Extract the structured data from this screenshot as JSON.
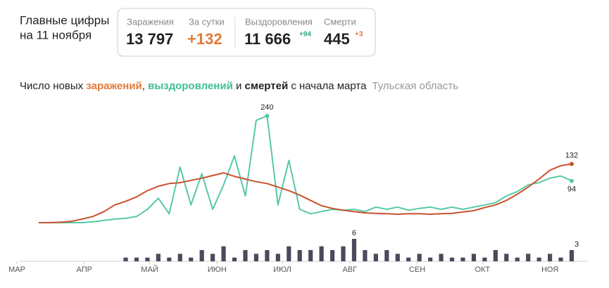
{
  "header": {
    "title_line1": "Главные цифры",
    "title_line2": "на 11 ноября"
  },
  "stats": [
    {
      "label": "Заражения",
      "value": "13 797"
    },
    {
      "label": "За сутки",
      "value": "+132"
    },
    {
      "label": "Выздоровления",
      "value": "11 666",
      "delta": "+94"
    },
    {
      "label": "Смерти",
      "value": "445",
      "delta": "+3"
    }
  ],
  "chart_data": {
    "type": "line",
    "title_parts": [
      "Число новых ",
      "заражений",
      ", ",
      "выздоровлений",
      " и ",
      "смертей",
      " с начала марта"
    ],
    "region": "Тульская область",
    "x": [
      10,
      15,
      20,
      25,
      30,
      35,
      40,
      45,
      50,
      55,
      60,
      65,
      70,
      75,
      80,
      85,
      90,
      95,
      100,
      105,
      110,
      115,
      120,
      125,
      130,
      135,
      140,
      145,
      150,
      155,
      160,
      165,
      170,
      175,
      180,
      185,
      190,
      195,
      200,
      205,
      210,
      215,
      220,
      225,
      230,
      235,
      240,
      245,
      250,
      255
    ],
    "xlim": [
      0,
      255
    ],
    "xticks": [
      {
        "value": 0,
        "label": "МАР"
      },
      {
        "value": 31,
        "label": "АПР"
      },
      {
        "value": 61,
        "label": "МАЙ"
      },
      {
        "value": 92,
        "label": "ИЮН"
      },
      {
        "value": 122,
        "label": "ИЮЛ"
      },
      {
        "value": 153,
        "label": "АВГ"
      },
      {
        "value": 184,
        "label": "СЕН"
      },
      {
        "value": 214,
        "label": "ОКТ"
      },
      {
        "value": 245,
        "label": "НОЯ"
      }
    ],
    "ylim": [
      0,
      240
    ],
    "series": [
      {
        "name": "заражений",
        "color": "#c8532e",
        "values": [
          0,
          0,
          1,
          3,
          8,
          14,
          25,
          40,
          48,
          58,
          72,
          82,
          88,
          90,
          95,
          100,
          106,
          112,
          104,
          98,
          92,
          88,
          80,
          72,
          62,
          50,
          38,
          32,
          28,
          25,
          22,
          21,
          20,
          19,
          20,
          20,
          19,
          20,
          21,
          24,
          27,
          34,
          40,
          50,
          64,
          80,
          98,
          118,
          128,
          132
        ]
      },
      {
        "name": "выздоровлений",
        "color": "#56c9a6",
        "values": [
          0,
          0,
          0,
          0,
          0,
          2,
          5,
          8,
          10,
          14,
          30,
          55,
          20,
          125,
          40,
          110,
          30,
          85,
          150,
          60,
          230,
          240,
          40,
          140,
          30,
          20,
          25,
          30,
          28,
          30,
          25,
          35,
          30,
          35,
          28,
          32,
          35,
          30,
          35,
          30,
          35,
          40,
          45,
          60,
          70,
          85,
          90,
          100,
          105,
          94
        ]
      }
    ],
    "deaths": {
      "name": "смертей",
      "color": "#4a4a5e",
      "ylim": [
        0,
        6
      ],
      "values": [
        0,
        0,
        0,
        0,
        0,
        0,
        0,
        0,
        1,
        1,
        1,
        2,
        1,
        2,
        1,
        3,
        2,
        4,
        1,
        3,
        2,
        3,
        2,
        4,
        3,
        3,
        4,
        3,
        4,
        6,
        3,
        2,
        3,
        2,
        1,
        2,
        1,
        2,
        1,
        1,
        2,
        1,
        3,
        2,
        1,
        2,
        1,
        2,
        1,
        3
      ]
    }
  }
}
